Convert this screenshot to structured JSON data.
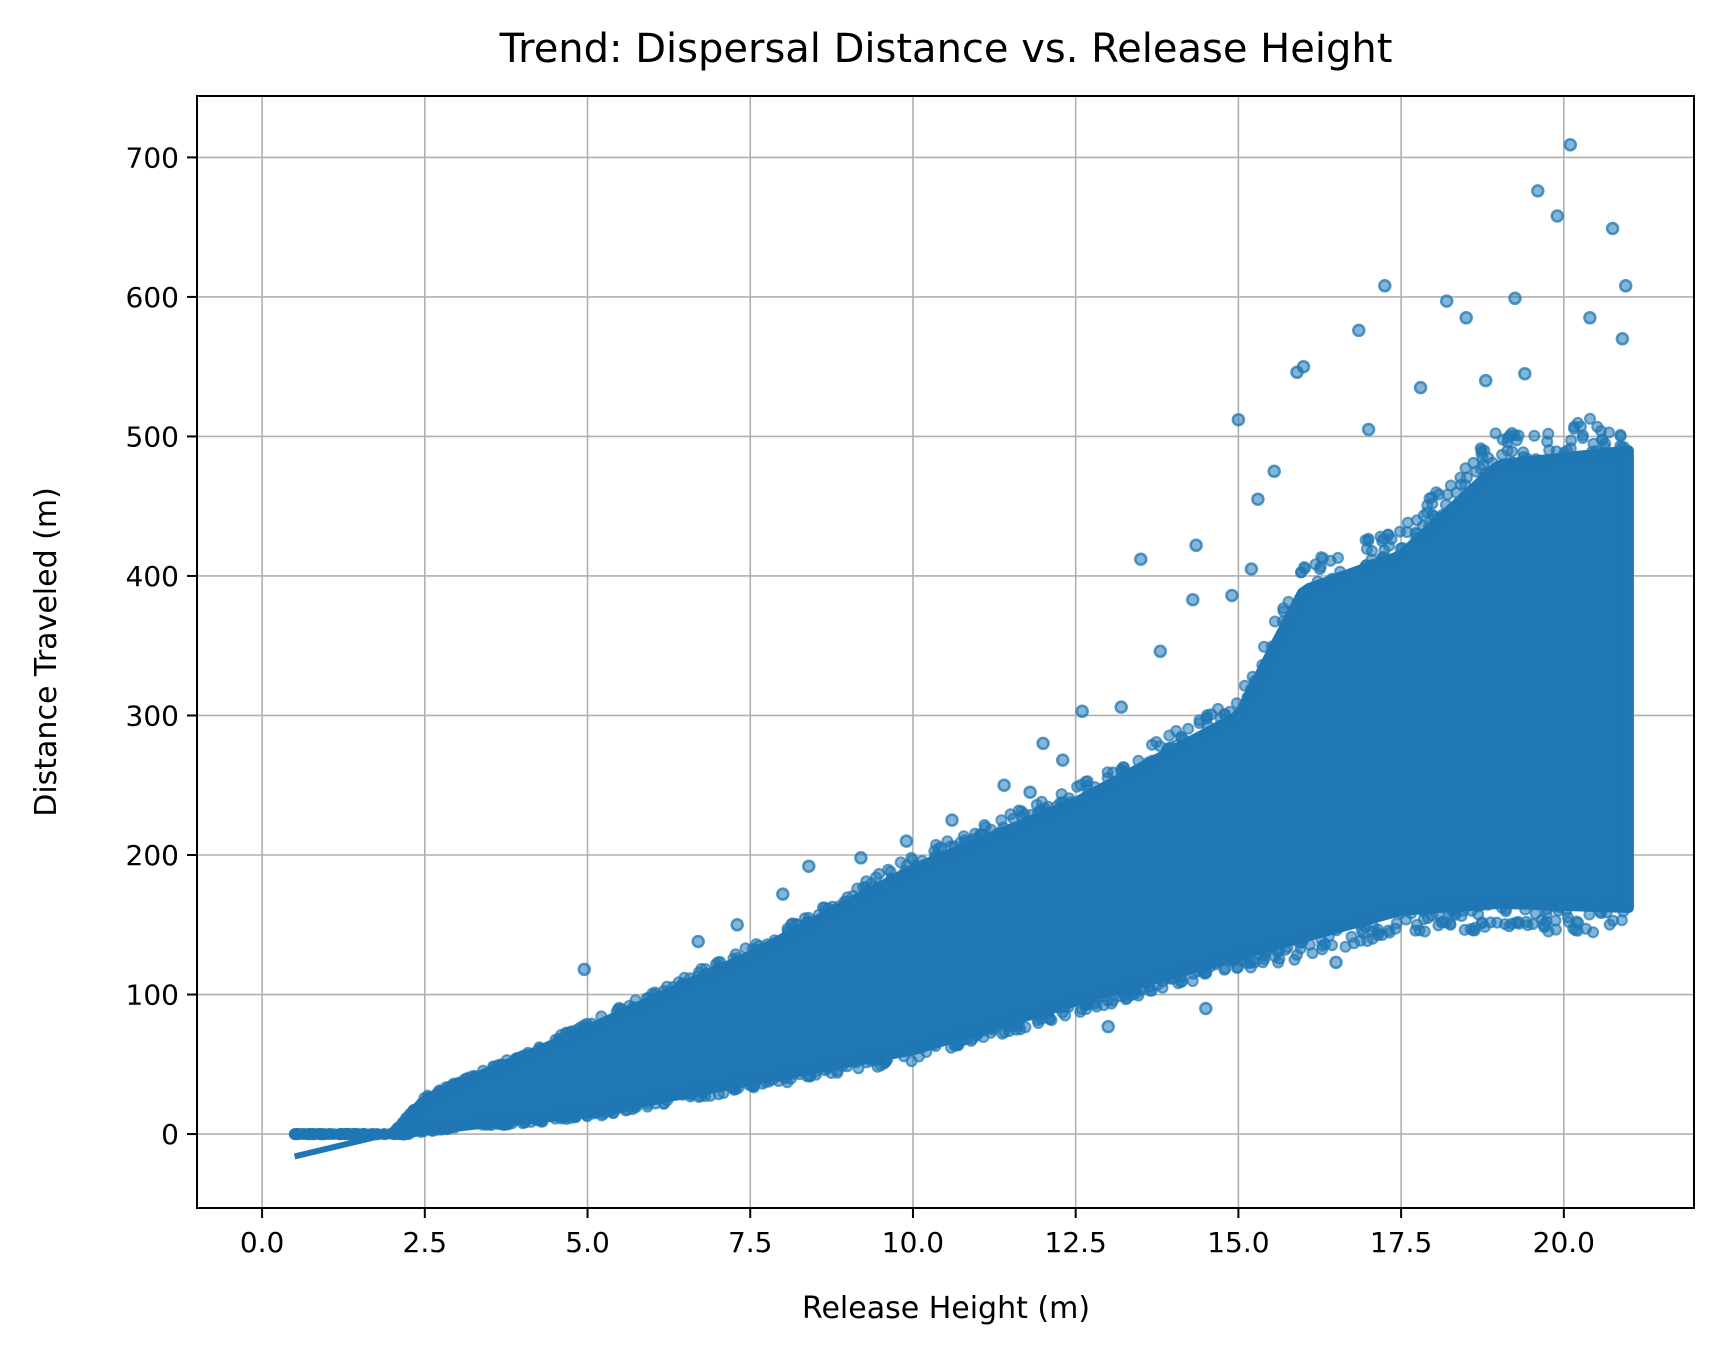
{
  "colors": {
    "points": "#1f77b4",
    "trend_line": "#1f77b4",
    "grid": "#b0b0b0",
    "axes": "#000000",
    "background": "#ffffff"
  },
  "chart_data": {
    "type": "scatter",
    "title": "Trend: Dispersal Distance vs. Release Height",
    "xlabel": "Release Height (m)",
    "ylabel": "Distance Traveled (m)",
    "xlim": [
      -1.0,
      22.0
    ],
    "ylim": [
      -53,
      744
    ],
    "x_ticks": [
      0.0,
      2.5,
      5.0,
      7.5,
      10.0,
      12.5,
      15.0,
      17.5,
      20.0
    ],
    "x_tick_labels": [
      "0.0",
      "2.5",
      "5.0",
      "7.5",
      "10.0",
      "12.5",
      "15.0",
      "17.5",
      "20.0"
    ],
    "y_ticks": [
      0,
      100,
      200,
      300,
      400,
      500,
      600,
      700
    ],
    "y_tick_labels": [
      "0",
      "100",
      "200",
      "300",
      "400",
      "500",
      "600",
      "700"
    ],
    "grid": true,
    "legend": "none",
    "series": [
      {
        "kind": "scatter",
        "x_range": [
          0.5,
          21.0
        ],
        "band_lower": [
          [
            0.5,
            0
          ],
          [
            2.2,
            0
          ],
          [
            2.5,
            3
          ],
          [
            5.0,
            15
          ],
          [
            7.5,
            38
          ],
          [
            10.0,
            60
          ],
          [
            12.5,
            95
          ],
          [
            15.0,
            128
          ],
          [
            17.5,
            160
          ],
          [
            19.0,
            165
          ],
          [
            21.0,
            162
          ]
        ],
        "band_upper": [
          [
            0.5,
            0
          ],
          [
            2.0,
            0
          ],
          [
            2.5,
            25
          ],
          [
            5.0,
            75
          ],
          [
            7.5,
            128
          ],
          [
            10.0,
            190
          ],
          [
            12.5,
            238
          ],
          [
            15.0,
            300
          ],
          [
            16.0,
            390
          ],
          [
            17.5,
            415
          ],
          [
            19.0,
            480
          ],
          [
            21.0,
            490
          ]
        ],
        "outliers": [
          {
            "x": 4.95,
            "y": 118
          },
          {
            "x": 6.7,
            "y": 138
          },
          {
            "x": 7.3,
            "y": 150
          },
          {
            "x": 8.4,
            "y": 192
          },
          {
            "x": 9.2,
            "y": 198
          },
          {
            "x": 11.4,
            "y": 250
          },
          {
            "x": 12.0,
            "y": 280
          },
          {
            "x": 12.6,
            "y": 303
          },
          {
            "x": 13.2,
            "y": 306
          },
          {
            "x": 13.5,
            "y": 412
          },
          {
            "x": 13.8,
            "y": 346
          },
          {
            "x": 14.3,
            "y": 383
          },
          {
            "x": 14.35,
            "y": 422
          },
          {
            "x": 15.0,
            "y": 512
          },
          {
            "x": 15.3,
            "y": 455
          },
          {
            "x": 15.55,
            "y": 475
          },
          {
            "x": 15.9,
            "y": 546
          },
          {
            "x": 16.0,
            "y": 550
          },
          {
            "x": 16.85,
            "y": 576
          },
          {
            "x": 17.25,
            "y": 608
          },
          {
            "x": 18.2,
            "y": 597
          },
          {
            "x": 19.25,
            "y": 599
          },
          {
            "x": 19.6,
            "y": 676
          },
          {
            "x": 19.9,
            "y": 658
          },
          {
            "x": 20.1,
            "y": 709
          },
          {
            "x": 20.75,
            "y": 649
          },
          {
            "x": 20.95,
            "y": 608
          },
          {
            "x": 13.0,
            "y": 77
          },
          {
            "x": 14.5,
            "y": 90
          },
          {
            "x": 16.5,
            "y": 123
          },
          {
            "x": 19.7,
            "y": 150
          },
          {
            "x": 12.3,
            "y": 268
          },
          {
            "x": 11.8,
            "y": 245
          },
          {
            "x": 14.9,
            "y": 386
          },
          {
            "x": 15.2,
            "y": 405
          },
          {
            "x": 17.0,
            "y": 505
          },
          {
            "x": 18.8,
            "y": 540
          },
          {
            "x": 19.4,
            "y": 545
          },
          {
            "x": 20.4,
            "y": 585
          },
          {
            "x": 20.9,
            "y": 570
          },
          {
            "x": 18.5,
            "y": 585
          },
          {
            "x": 17.8,
            "y": 535
          },
          {
            "x": 9.9,
            "y": 210
          },
          {
            "x": 10.6,
            "y": 225
          },
          {
            "x": 8.0,
            "y": 172
          }
        ]
      },
      {
        "kind": "trend_line",
        "x": [
          0.5,
          2.3
        ],
        "y": [
          -16,
          4
        ]
      }
    ]
  }
}
